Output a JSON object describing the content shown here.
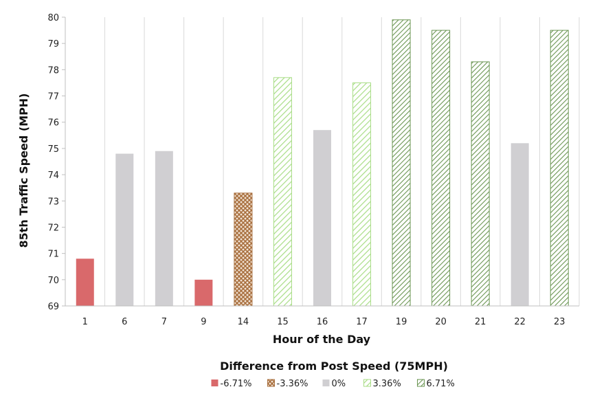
{
  "chart_data": {
    "type": "bar",
    "title": "",
    "xlabel": "Hour of the Day",
    "ylabel": "85th Traffic Speed (MPH)",
    "ylim": [
      69,
      80
    ],
    "yticks": [
      69,
      70,
      71,
      72,
      73,
      74,
      75,
      76,
      77,
      78,
      79,
      80
    ],
    "grid": "vertical",
    "categories": [
      "1",
      "6",
      "7",
      "9",
      "14",
      "15",
      "16",
      "17",
      "19",
      "20",
      "21",
      "22",
      "23"
    ],
    "values": [
      70.8,
      74.8,
      74.9,
      70.0,
      73.3,
      77.7,
      75.7,
      77.5,
      79.9,
      79.5,
      78.3,
      75.2,
      79.5
    ],
    "bar_groups": [
      "-6.71%",
      "0%",
      "0%",
      "-6.71%",
      "-3.36%",
      "3.36%",
      "0%",
      "3.36%",
      "6.71%",
      "6.71%",
      "6.71%",
      "0%",
      "6.71%"
    ],
    "legend": {
      "title": "Difference from Post Speed (75MPH)",
      "placement": "bottom",
      "entries": [
        {
          "label": "-6.71%",
          "color": "#d9696b",
          "pattern": "solid"
        },
        {
          "label": "-3.36%",
          "color": "#b27a4a",
          "pattern": "crosshatch"
        },
        {
          "label": "0%",
          "color": "#d0cfd2",
          "pattern": "solid"
        },
        {
          "label": "3.36%",
          "color": "#9fd97a",
          "pattern": "light-diagonal"
        },
        {
          "label": "6.71%",
          "color": "#6f9a55",
          "pattern": "dark-diagonal"
        }
      ]
    }
  }
}
